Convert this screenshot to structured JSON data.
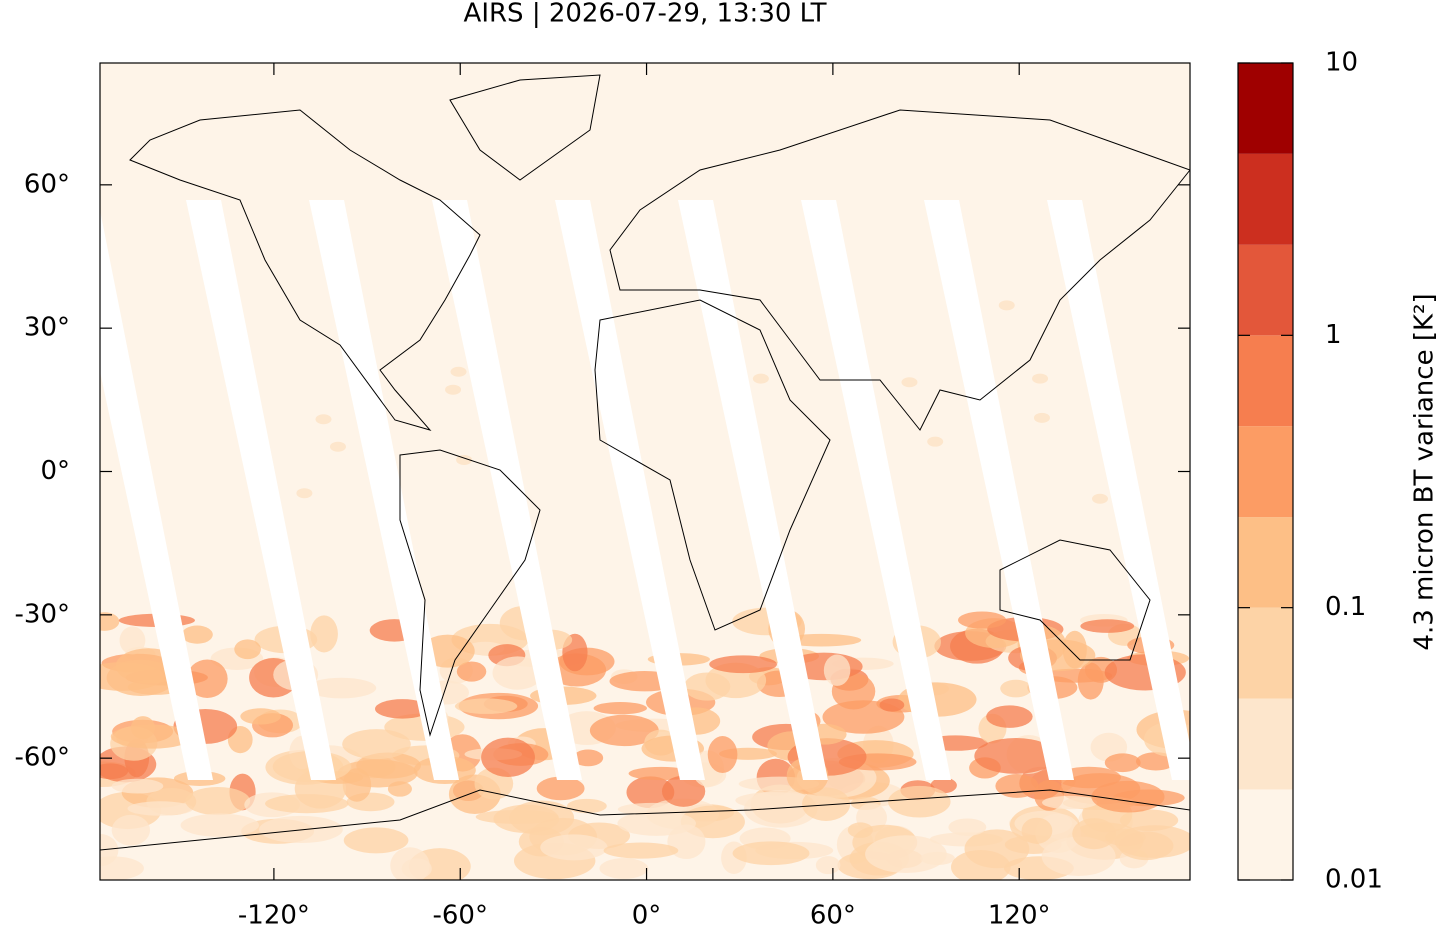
{
  "chart_data": {
    "type": "map",
    "title": "AIRS | 2026-07-29, 13:30 LT",
    "xlim": [
      -176,
      175
    ],
    "ylim": [
      -85.5,
      85.5
    ],
    "xticks": [
      {
        "value": -120,
        "label": "-120°"
      },
      {
        "value": -60,
        "label": "-60°"
      },
      {
        "value": 0,
        "label": "0°"
      },
      {
        "value": 60,
        "label": "60°"
      },
      {
        "value": 120,
        "label": "120°"
      }
    ],
    "yticks": [
      {
        "value": -60,
        "label": "-60°"
      },
      {
        "value": -30,
        "label": "-30°"
      },
      {
        "value": 0,
        "label": "0°"
      },
      {
        "value": 30,
        "label": "30°"
      },
      {
        "value": 60,
        "label": "60°"
      }
    ],
    "colorbar": {
      "label": "4.3 micron BT variance [K²]",
      "scale": "log",
      "lim": [
        0.01,
        10
      ],
      "ticks": [
        0.01,
        0.1,
        1,
        10
      ],
      "levels": [
        0.01,
        0.0215,
        0.0464,
        0.1,
        0.215,
        0.464,
        1,
        2.15,
        4.64,
        10
      ],
      "colors": [
        "#fef4e8",
        "#fde6cc",
        "#fdd3a6",
        "#fdbf86",
        "#fc9c64",
        "#f67e4f",
        "#e3573a",
        "#cc2f1f",
        "#9f0000"
      ]
    }
  }
}
